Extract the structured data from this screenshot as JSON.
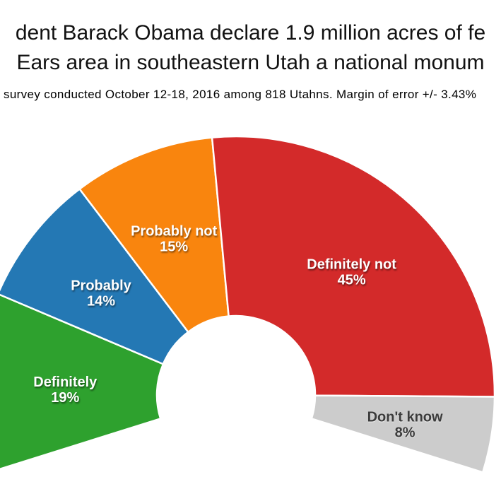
{
  "figure": {
    "title_line1": "dent Barack Obama declare 1.9 million acres of fe",
    "title_line2": "Ears area in southeastern Utah a national monum",
    "subtitle": "survey conducted October 12-18, 2016 among 818 Utahns. Margin of error +/- 3.43%"
  },
  "chart_data": {
    "type": "pie",
    "variant": "half-donut-gauge",
    "unit": "%",
    "legend": "none",
    "labels_on_slices": true,
    "background": "#ffffff",
    "separator_color": "#ffffff",
    "start_angle_deg": 197.4,
    "end_angle_deg": -17.4,
    "categories": [
      "Definitely",
      "Probably",
      "Probably not",
      "Definitely not",
      "Don't know"
    ],
    "values": [
      19,
      14,
      15,
      45,
      8
    ],
    "slices": [
      {
        "label": "Definitely",
        "value": 19,
        "color": "#2ea12e",
        "text_color": "#ffffff"
      },
      {
        "label": "Probably",
        "value": 14,
        "color": "#2478b4",
        "text_color": "#ffffff"
      },
      {
        "label": "Probably not",
        "value": 15,
        "color": "#f9850e",
        "text_color": "#ffffff"
      },
      {
        "label": "Definitely not",
        "value": 45,
        "color": "#d32a2a",
        "text_color": "#ffffff"
      },
      {
        "label": "Don't know",
        "value": 8,
        "color": "#cccccc",
        "text_color": "#3b3b3b"
      }
    ]
  }
}
